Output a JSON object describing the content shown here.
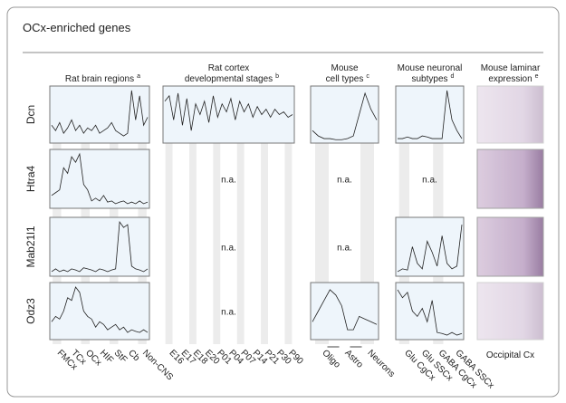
{
  "title": "OCx-enriched genes",
  "columns": [
    {
      "label": [
        "Rat brain regions"
      ],
      "note": "a",
      "ticks": [
        "FMCx",
        "TCx",
        "OCx",
        "HIF",
        "StF",
        "Cb",
        "Non-CNS"
      ]
    },
    {
      "label": [
        "Rat cortex",
        "developmental stages"
      ],
      "note": "b",
      "ticks": [
        "E16",
        "E17",
        "E18",
        "E20",
        "P01",
        "P04",
        "P07",
        "P14",
        "P21",
        "P30",
        "P90"
      ]
    },
    {
      "label": [
        "Mouse",
        "cell types"
      ],
      "note": "c",
      "ticks": [
        "Oligo",
        "Astro",
        "Neurons"
      ]
    },
    {
      "label": [
        "Mouse neuronal",
        "subtypes"
      ],
      "note": "d",
      "ticks": [
        "Glu CgCx",
        "Glu SSCx",
        "GABA CgCx",
        "GABA SSCx"
      ]
    },
    {
      "label": [
        "Mouse laminar",
        "expression"
      ],
      "note": "e",
      "caption": "Occipital Cx"
    }
  ],
  "rows": [
    {
      "gene": "Dcn",
      "cells": [
        {
          "values": [
            30,
            20,
            35,
            15,
            25,
            40,
            20,
            30,
            15,
            25,
            20,
            30,
            15,
            20,
            25,
            35,
            20,
            15,
            10,
            15,
            95,
            40,
            85,
            30,
            45
          ]
        },
        {
          "values": [
            75,
            85,
            40,
            90,
            30,
            80,
            20,
            70,
            50,
            75,
            35,
            85,
            45,
            70,
            55,
            80,
            40,
            75,
            55,
            70,
            45,
            65,
            50,
            60,
            45,
            60,
            50,
            55,
            45,
            50
          ]
        },
        {
          "values": [
            20,
            10,
            5,
            5,
            3,
            3,
            5,
            10,
            50,
            90,
            60,
            40
          ]
        },
        {
          "values": [
            5,
            5,
            8,
            5,
            5,
            10,
            8,
            5,
            5,
            5,
            95,
            40,
            20,
            5
          ]
        }
      ]
    },
    {
      "gene": "Htra4",
      "cells": [
        {
          "values": [
            20,
            25,
            30,
            70,
            60,
            90,
            80,
            95,
            40,
            30,
            10,
            15,
            10,
            20,
            8,
            10,
            5,
            8,
            10,
            5,
            8,
            5,
            10,
            5,
            8
          ]
        },
        {
          "text": "n.a."
        },
        {
          "text": "n.a."
        },
        {
          "text": "n.a."
        }
      ]
    },
    {
      "gene": "Mab21l1",
      "cells": [
        {
          "values": [
            5,
            10,
            5,
            8,
            5,
            10,
            8,
            5,
            12,
            10,
            8,
            5,
            10,
            8,
            5,
            8,
            10,
            95,
            85,
            90,
            15,
            10,
            8,
            5,
            10
          ]
        },
        {
          "text": "n.a."
        },
        {
          "text": "n.a."
        },
        {
          "values": [
            5,
            10,
            8,
            50,
            20,
            10,
            60,
            40,
            15,
            70,
            20,
            10,
            15,
            90
          ]
        }
      ]
    },
    {
      "gene": "Odz3",
      "cells": [
        {
          "values": [
            30,
            40,
            35,
            50,
            75,
            70,
            95,
            85,
            50,
            40,
            35,
            20,
            30,
            25,
            15,
            20,
            25,
            15,
            20,
            10,
            15,
            12,
            10,
            15,
            10
          ]
        },
        {
          "text": "n.a."
        },
        {
          "values": [
            30,
            50,
            70,
            90,
            80,
            60,
            15,
            15,
            40,
            35,
            30,
            25
          ]
        },
        {
          "values": [
            90,
            75,
            85,
            50,
            40,
            55,
            30,
            70,
            10,
            8,
            5,
            10,
            5,
            8
          ]
        }
      ]
    }
  ]
}
